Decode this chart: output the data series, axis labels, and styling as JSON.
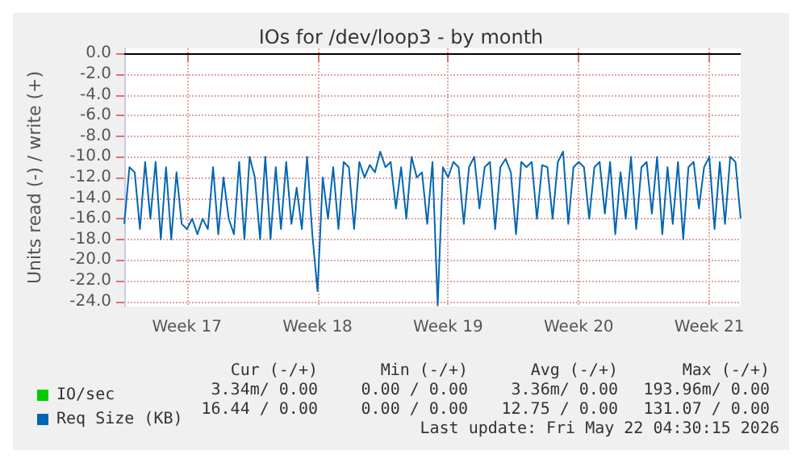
{
  "chart_data": {
    "type": "line",
    "title": "IOs for /dev/loop3 - by month",
    "ylabel": "Units read (-) / write (+)",
    "categories": [
      null,
      null,
      null,
      null,
      null,
      null,
      null,
      null,
      null,
      null,
      null,
      null,
      "Week 17",
      null,
      null,
      null,
      null,
      null,
      null,
      null,
      null,
      null,
      null,
      null,
      null,
      null,
      null,
      null,
      null,
      null,
      null,
      null,
      null,
      null,
      null,
      null,
      null,
      "Week 18",
      null,
      null,
      null,
      null,
      null,
      null,
      null,
      null,
      null,
      null,
      null,
      null,
      null,
      null,
      null,
      null,
      null,
      null,
      null,
      null,
      null,
      null,
      null,
      null,
      "Week 19",
      null,
      null,
      null,
      null,
      null,
      null,
      null,
      null,
      null,
      null,
      null,
      null,
      null,
      null,
      null,
      null,
      null,
      null,
      null,
      null,
      null,
      null,
      null,
      null,
      "Week 20",
      null,
      null,
      null,
      null,
      null,
      null,
      null,
      null,
      null,
      null,
      null,
      null,
      null,
      null,
      null,
      null,
      null,
      null,
      null,
      null,
      null,
      null,
      null,
      null,
      "Week 21",
      null,
      null,
      null,
      null,
      null,
      null
    ],
    "series": [
      {
        "name": "IO/sec",
        "color": "#00cc00",
        "values": [
          null,
          null,
          null,
          null,
          null,
          null,
          null,
          null,
          null,
          null,
          null,
          null,
          null,
          null,
          null,
          null,
          null,
          null,
          null,
          null,
          null,
          null,
          null,
          null,
          null,
          null,
          null,
          null,
          null,
          null,
          null,
          null,
          null,
          null,
          null,
          null,
          null,
          null,
          null,
          null,
          null,
          null,
          null,
          null,
          null,
          null,
          null,
          null,
          null,
          null,
          null,
          null,
          null,
          null,
          null,
          null,
          null,
          null,
          null,
          null,
          null,
          null,
          null,
          null,
          null,
          null,
          null,
          null,
          null,
          null,
          null,
          null,
          null,
          null,
          null,
          null,
          null,
          null,
          null,
          null,
          null,
          null,
          null,
          null,
          null,
          null,
          null,
          null,
          null,
          null,
          null,
          null,
          null,
          null,
          null,
          null,
          null,
          null,
          null,
          null,
          null,
          null,
          null,
          null,
          null,
          null,
          null,
          null,
          null,
          null,
          null,
          null,
          null,
          null,
          null,
          null,
          null,
          null,
          null
        ]
      },
      {
        "name": "Req Size (KB)",
        "color": "#0066b3",
        "values": [
          -16.5,
          -11,
          -11.5,
          -17,
          -10.5,
          -16,
          -10.5,
          -18,
          -11,
          -18,
          -11.5,
          -16.5,
          -17,
          -16,
          -17.5,
          -16,
          -17,
          -11,
          -17.5,
          -12,
          -16,
          -17.5,
          -10.5,
          -18,
          -10,
          -12,
          -18,
          -10,
          -18,
          -11,
          -17,
          -10.5,
          -16.5,
          -13,
          -17,
          -10,
          -17.5,
          -23,
          -12,
          -16,
          -11,
          -17,
          -10.5,
          -11,
          -17,
          -10.5,
          -12,
          -10.8,
          -11.5,
          -9.5,
          -11,
          -10.5,
          -15,
          -11,
          -16,
          -10,
          -12,
          -11.5,
          -16.5,
          -10.5,
          -24.4,
          -11,
          -12,
          -10.5,
          -11,
          -16.5,
          -11,
          -10,
          -15,
          -11,
          -10.5,
          -17,
          -11,
          -10.2,
          -11.5,
          -17.5,
          -10.5,
          -11,
          -10.5,
          -16,
          -10.8,
          -11,
          -16,
          -10.5,
          -9.5,
          -16.5,
          -11,
          -10.5,
          -11,
          -16,
          -11,
          -10.5,
          -15.5,
          -10.5,
          -17.5,
          -11.5,
          -16,
          -10,
          -17,
          -11,
          -10.5,
          -15.5,
          -10,
          -17.5,
          -11,
          -16.5,
          -10.5,
          -18,
          -11,
          -10.5,
          -15,
          -11,
          -10,
          -17,
          -10.5,
          -16.5,
          -10,
          -10.5,
          -16
        ]
      }
    ],
    "ylim": [
      -24.5,
      0.5
    ],
    "yticks": [
      {
        "value": 0,
        "label": "0.0"
      },
      {
        "value": -2,
        "label": "-2.0"
      },
      {
        "value": -4,
        "label": "-4.0"
      },
      {
        "value": -6,
        "label": "-6.0"
      },
      {
        "value": -8,
        "label": "-8.0"
      },
      {
        "value": -10,
        "label": "-10.0"
      },
      {
        "value": -12,
        "label": "-12.0"
      },
      {
        "value": -14,
        "label": "-14.0"
      },
      {
        "value": -16,
        "label": "-16.0"
      },
      {
        "value": -18,
        "label": "-18.0"
      },
      {
        "value": -20,
        "label": "-20.0"
      },
      {
        "value": -22,
        "label": "-22.0"
      },
      {
        "value": -24,
        "label": "-24.0"
      }
    ],
    "ref_lines": [
      {
        "axis": "y",
        "value": 0,
        "color": "#000000"
      }
    ],
    "grid": true,
    "legend": "bottom left",
    "marker": "none",
    "line_style": "solid",
    "annotations": [
      "Cur (-/+)",
      "Min (-/+)",
      "Avg (-/+)",
      "Max (-/+)",
      "3.34m/ 0.00",
      "0.00 / 0.00",
      "3.36m/ 0.00",
      "193.96m/ 0.00",
      "16.44 / 0.00",
      "0.00 / 0.00",
      "12.75 / 0.00",
      "131.07 / 0.00",
      "Last update: Fri May 22 04:30:15 2026"
    ]
  }
}
